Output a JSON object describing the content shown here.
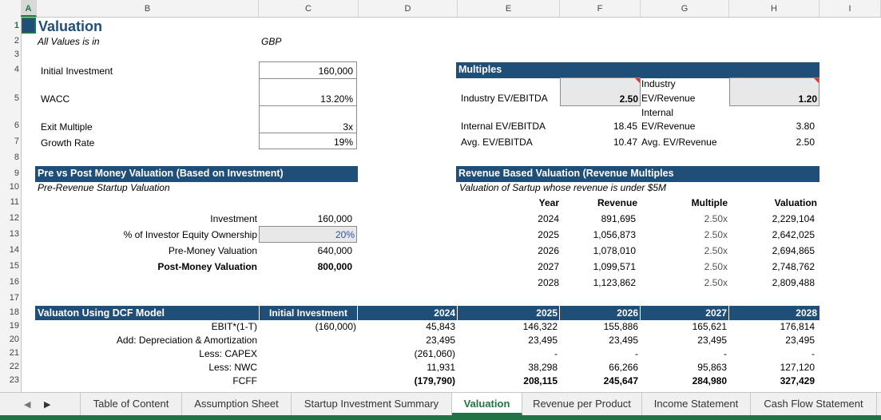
{
  "columns": [
    "A",
    "B",
    "C",
    "D",
    "E",
    "F",
    "G",
    "H",
    "I"
  ],
  "rows": [
    "1",
    "2",
    "3",
    "4",
    "5",
    "6",
    "7",
    "8",
    "9",
    "10",
    "11",
    "12",
    "13",
    "14",
    "15",
    "16",
    "17",
    "18",
    "19",
    "20",
    "21",
    "22",
    "23"
  ],
  "title": "Valuation",
  "subtitle_label": "All Values is in",
  "currency": "GBP",
  "inputs": {
    "initial_investment_label": "Initial Investment",
    "initial_investment": "160,000",
    "wacc_label": "WACC",
    "wacc": "13.20%",
    "exit_multiple_label": "Exit Multiple",
    "exit_multiple": "3x",
    "growth_rate_label": "Growth Rate",
    "growth_rate": "19%"
  },
  "multiples": {
    "header": "Multiples",
    "industry_ev_ebitda_label": "Industry EV/EBITDA",
    "industry_ev_ebitda": "2.50",
    "industry_ev_revenue_label_1": "Industry",
    "industry_ev_revenue_label_2": "EV/Revenue",
    "industry_ev_revenue": "1.20",
    "internal_ev_ebitda_label": "Internal EV/EBITDA",
    "internal_ev_ebitda": "18.45",
    "internal_ev_revenue_label_1": "Internal",
    "internal_ev_revenue_label_2": "EV/Revenue",
    "internal_ev_revenue": "3.80",
    "avg_ev_ebitda_label": "Avg. EV/EBITDA",
    "avg_ev_ebitda": "10.47",
    "avg_ev_revenue_label": "Avg. EV/Revenue",
    "avg_ev_revenue": "2.50"
  },
  "prepost": {
    "header": "Pre vs Post Money Valuation (Based on Investment)",
    "subheader": "Pre-Revenue Startup Valuation",
    "investment_label": "Investment",
    "investment": "160,000",
    "equity_label": "% of Investor Equity Ownership",
    "equity": "20%",
    "premoney_label": "Pre-Money Valuation",
    "premoney": "640,000",
    "postmoney_label": "Post-Money Valuation",
    "postmoney": "800,000"
  },
  "revenue_valuation": {
    "header": "Revenue Based Valuation (Revenue Multiples",
    "subheader": "Valuation of Sartup whose revenue is under $5M",
    "col_year": "Year",
    "col_revenue": "Revenue",
    "col_multiple": "Multiple",
    "col_valuation": "Valuation",
    "rows": [
      {
        "year": "2024",
        "revenue": "891,695",
        "multiple": "2.50x",
        "valuation": "2,229,104"
      },
      {
        "year": "2025",
        "revenue": "1,056,873",
        "multiple": "2.50x",
        "valuation": "2,642,025"
      },
      {
        "year": "2026",
        "revenue": "1,078,010",
        "multiple": "2.50x",
        "valuation": "2,694,865"
      },
      {
        "year": "2027",
        "revenue": "1,099,571",
        "multiple": "2.50x",
        "valuation": "2,748,762"
      },
      {
        "year": "2028",
        "revenue": "1,123,862",
        "multiple": "2.50x",
        "valuation": "2,809,488"
      }
    ]
  },
  "dcf": {
    "header": "Valuaton Using DCF Model",
    "col_initial": "Initial Investment",
    "years": [
      "2024",
      "2025",
      "2026",
      "2027",
      "2028"
    ],
    "rows": [
      {
        "label": "EBIT*(1-T)",
        "initial": "(160,000)",
        "values": [
          "45,843",
          "146,322",
          "155,886",
          "165,621",
          "176,814"
        ],
        "bold": false
      },
      {
        "label": "Add: Depreciation & Amortization",
        "initial": "",
        "values": [
          "23,495",
          "23,495",
          "23,495",
          "23,495",
          "23,495"
        ],
        "bold": false
      },
      {
        "label": "Less: CAPEX",
        "initial": "",
        "values": [
          "(261,060)",
          "-",
          "-",
          "-",
          "-"
        ],
        "bold": false
      },
      {
        "label": "Less: NWC",
        "initial": "",
        "values": [
          "11,931",
          "38,298",
          "66,266",
          "95,863",
          "127,120"
        ],
        "bold": false
      },
      {
        "label": "FCFF",
        "initial": "",
        "values": [
          "(179,790)",
          "208,115",
          "245,647",
          "284,980",
          "327,429"
        ],
        "bold": true
      }
    ]
  },
  "tabs": [
    "Table of Content",
    "Assumption Sheet",
    "Startup Investment Summary",
    "Valuation",
    "Revenue per Product",
    "Income Statement",
    "Cash Flow Statement"
  ],
  "active_tab": "Valuation",
  "colors": {
    "header_bar": "#1f4e79",
    "accent": "#217346"
  }
}
